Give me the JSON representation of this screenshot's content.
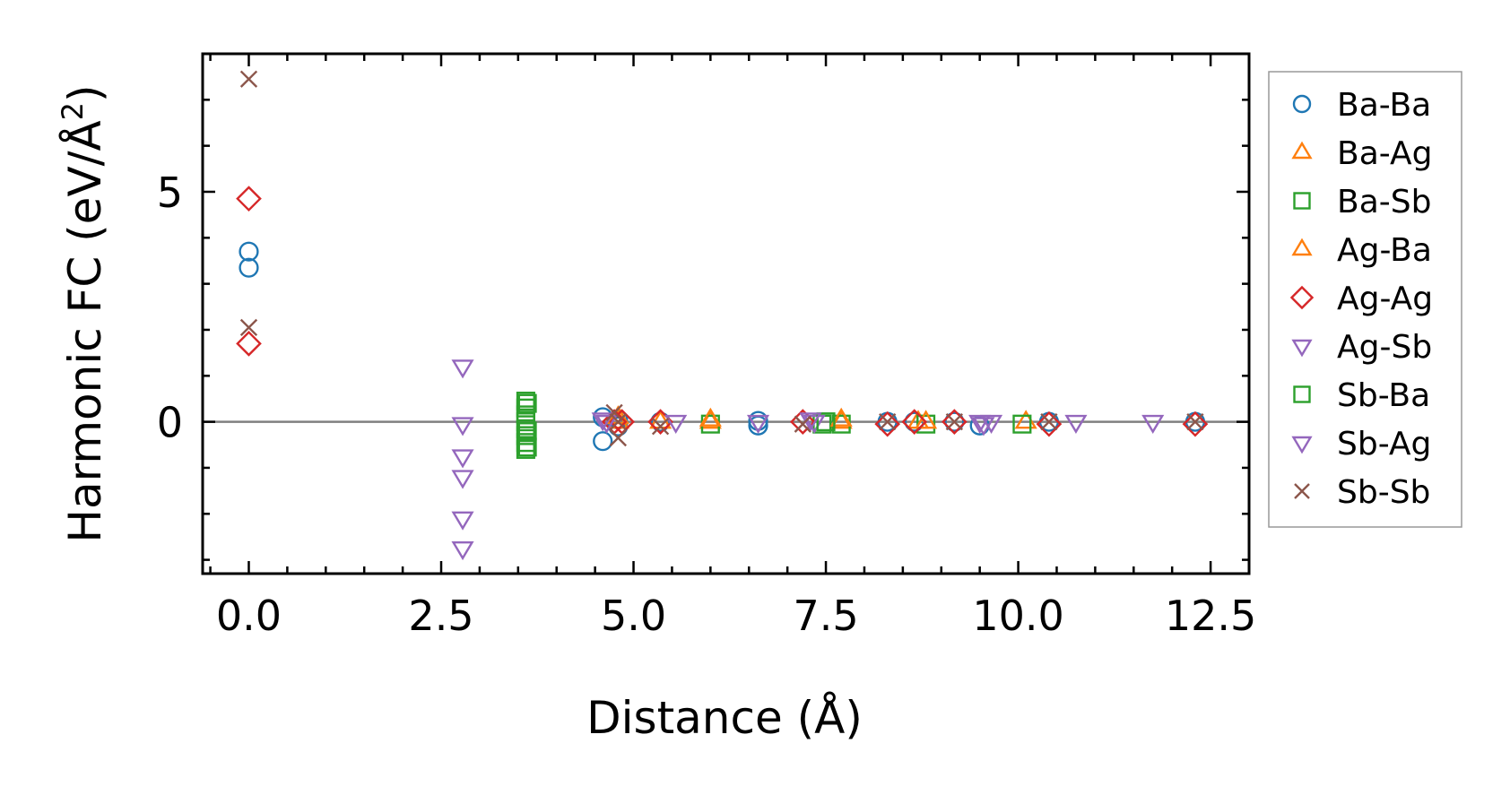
{
  "chart_data": {
    "type": "scatter",
    "xlabel": "Distance (Å)",
    "ylabel": "Harmonic FC (eV/Å",
    "ylabel_superscript": "2",
    "ylabel_suffix": ")",
    "xlim": [
      -0.6,
      13.0
    ],
    "ylim": [
      -3.3,
      8.0
    ],
    "x_ticks": [
      0.0,
      2.5,
      5.0,
      7.5,
      10.0,
      12.5
    ],
    "x_tick_labels": [
      "0.0",
      "2.5",
      "5.0",
      "7.5",
      "10.0",
      "12.5"
    ],
    "y_ticks": [
      0,
      5
    ],
    "y_tick_labels": [
      "0",
      "5"
    ],
    "x_minor_step": 0.5,
    "y_minor_step": 1,
    "zero_line": true,
    "grid": false,
    "legend_position": "outside right",
    "series": [
      {
        "name": "Ba-Ba",
        "marker": "circle",
        "color": "#1f77b4",
        "points": [
          [
            0,
            3.7
          ],
          [
            0,
            3.35
          ],
          [
            4.6,
            0.1
          ],
          [
            4.6,
            -0.42
          ],
          [
            4.8,
            0.05
          ],
          [
            4.8,
            -0.1
          ],
          [
            5.35,
            0.0
          ],
          [
            6.62,
            -0.08
          ],
          [
            6.62,
            0.02
          ],
          [
            8.3,
            0.0
          ],
          [
            8.65,
            0.0
          ],
          [
            9.17,
            0.0
          ],
          [
            9.5,
            -0.08
          ],
          [
            10.4,
            0.0
          ],
          [
            12.3,
            0.0
          ]
        ]
      },
      {
        "name": "Ba-Ag",
        "marker": "triangle-up",
        "color": "#ff7f0e",
        "points": [
          [
            4.8,
            0.0
          ],
          [
            5.35,
            0.0
          ],
          [
            6.0,
            0.0
          ],
          [
            7.7,
            0.0
          ],
          [
            8.7,
            0.0
          ],
          [
            10.1,
            0.0
          ]
        ]
      },
      {
        "name": "Ba-Sb",
        "marker": "square",
        "color": "#2ca02c",
        "points": [
          [
            3.6,
            0.45
          ],
          [
            3.6,
            0.3
          ],
          [
            3.6,
            0.15
          ],
          [
            3.6,
            0.0
          ],
          [
            3.6,
            -0.15
          ],
          [
            3.6,
            -0.3
          ],
          [
            3.6,
            -0.45
          ],
          [
            3.6,
            -0.6
          ],
          [
            6.0,
            -0.05
          ],
          [
            7.45,
            -0.05
          ],
          [
            7.7,
            -0.05
          ],
          [
            8.8,
            -0.05
          ],
          [
            10.05,
            -0.05
          ]
        ]
      },
      {
        "name": "Ag-Ba",
        "marker": "triangle-up",
        "color": "#ff7f0e",
        "points": [
          [
            4.8,
            0.1
          ],
          [
            6.0,
            0.05
          ],
          [
            7.7,
            0.05
          ],
          [
            8.8,
            0.0
          ]
        ]
      },
      {
        "name": "Ag-Ag",
        "marker": "diamond",
        "color": "#d62728",
        "points": [
          [
            0,
            4.85
          ],
          [
            0,
            1.7
          ],
          [
            4.75,
            0.0
          ],
          [
            4.85,
            0.0
          ],
          [
            5.35,
            0.0
          ],
          [
            7.2,
            0.0
          ],
          [
            8.3,
            -0.05
          ],
          [
            8.65,
            0.0
          ],
          [
            9.17,
            0.0
          ],
          [
            10.4,
            -0.05
          ],
          [
            12.3,
            -0.05
          ]
        ]
      },
      {
        "name": "Ag-Sb",
        "marker": "triangle-down",
        "color": "#9467bd",
        "points": [
          [
            2.78,
            1.2
          ],
          [
            2.78,
            -0.05
          ],
          [
            2.78,
            -0.75
          ],
          [
            2.78,
            -1.2
          ],
          [
            2.78,
            -2.1
          ],
          [
            2.78,
            -2.75
          ],
          [
            4.6,
            0.05
          ],
          [
            5.55,
            0.0
          ],
          [
            6.62,
            0.0
          ],
          [
            7.35,
            0.0
          ],
          [
            9.5,
            0.0
          ],
          [
            9.65,
            0.0
          ],
          [
            10.75,
            0.0
          ],
          [
            11.75,
            0.0
          ]
        ]
      },
      {
        "name": "Sb-Ba",
        "marker": "square",
        "color": "#2ca02c",
        "points": [
          [
            3.62,
            0.4
          ],
          [
            3.62,
            -0.2
          ],
          [
            3.62,
            -0.55
          ],
          [
            7.5,
            0.0
          ]
        ]
      },
      {
        "name": "Sb-Ag",
        "marker": "triangle-down",
        "color": "#9467bd",
        "points": [
          [
            4.65,
            0.0
          ],
          [
            7.3,
            0.05
          ],
          [
            9.55,
            -0.05
          ]
        ]
      },
      {
        "name": "Sb-Sb",
        "marker": "x",
        "color": "#8c564b",
        "points": [
          [
            0,
            7.45
          ],
          [
            0,
            2.05
          ],
          [
            4.75,
            0.2
          ],
          [
            4.8,
            0.0
          ],
          [
            4.8,
            -0.35
          ],
          [
            5.35,
            -0.1
          ],
          [
            7.2,
            -0.05
          ],
          [
            8.3,
            0.0
          ],
          [
            9.17,
            0.0
          ],
          [
            10.4,
            0.0
          ],
          [
            12.3,
            0.0
          ]
        ]
      }
    ]
  }
}
